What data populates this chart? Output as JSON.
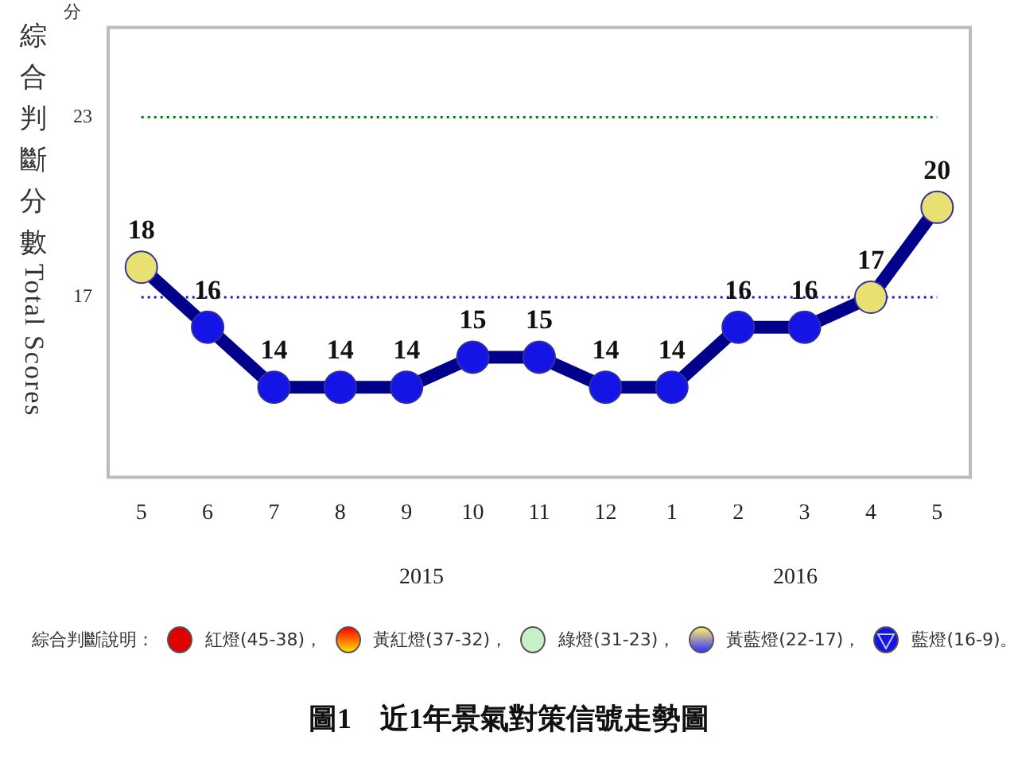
{
  "chart_data": {
    "type": "line",
    "title": "圖1　近1年景氣對策信號走勢圖",
    "ylabel": "綜合判斷分數 Total Scores",
    "categories": [
      "5",
      "6",
      "7",
      "8",
      "9",
      "10",
      "11",
      "12",
      "1",
      "2",
      "3",
      "4",
      "5"
    ],
    "series": [
      {
        "color": "#00008b",
        "colors": [
          "#e8e070",
          "#1414e6",
          "#1414e6",
          "#1414e6",
          "#1414e6",
          "#1414e6",
          "#1414e6",
          "#1414e6",
          "#1414e6",
          "#1414e6",
          "#1414e6",
          "#e8e070",
          "#e8e070"
        ],
        "values": [
          18,
          16,
          14,
          14,
          14,
          15,
          15,
          14,
          14,
          16,
          16,
          17,
          20
        ]
      }
    ],
    "ylim": [
      11,
      26
    ],
    "yticks": [
      17,
      23
    ],
    "grid": false,
    "legend": false,
    "marker": "circle",
    "line_style": "solid",
    "data_labels": true,
    "ref_lines": [
      {
        "axis": "y",
        "value": 23,
        "color": "#008000",
        "line_style": "dotted"
      },
      {
        "axis": "y",
        "value": 17,
        "color": "#1a1ab0",
        "line_style": "dotted"
      }
    ],
    "annotations": [
      "分",
      "2015",
      "2016",
      "綜合判斷說明：",
      "紅燈(45-38)，",
      "黃紅燈(37-32)，",
      "綠燈(31-23)，",
      "黃藍燈(22-17)，",
      "藍燈(16-9)。"
    ]
  }
}
